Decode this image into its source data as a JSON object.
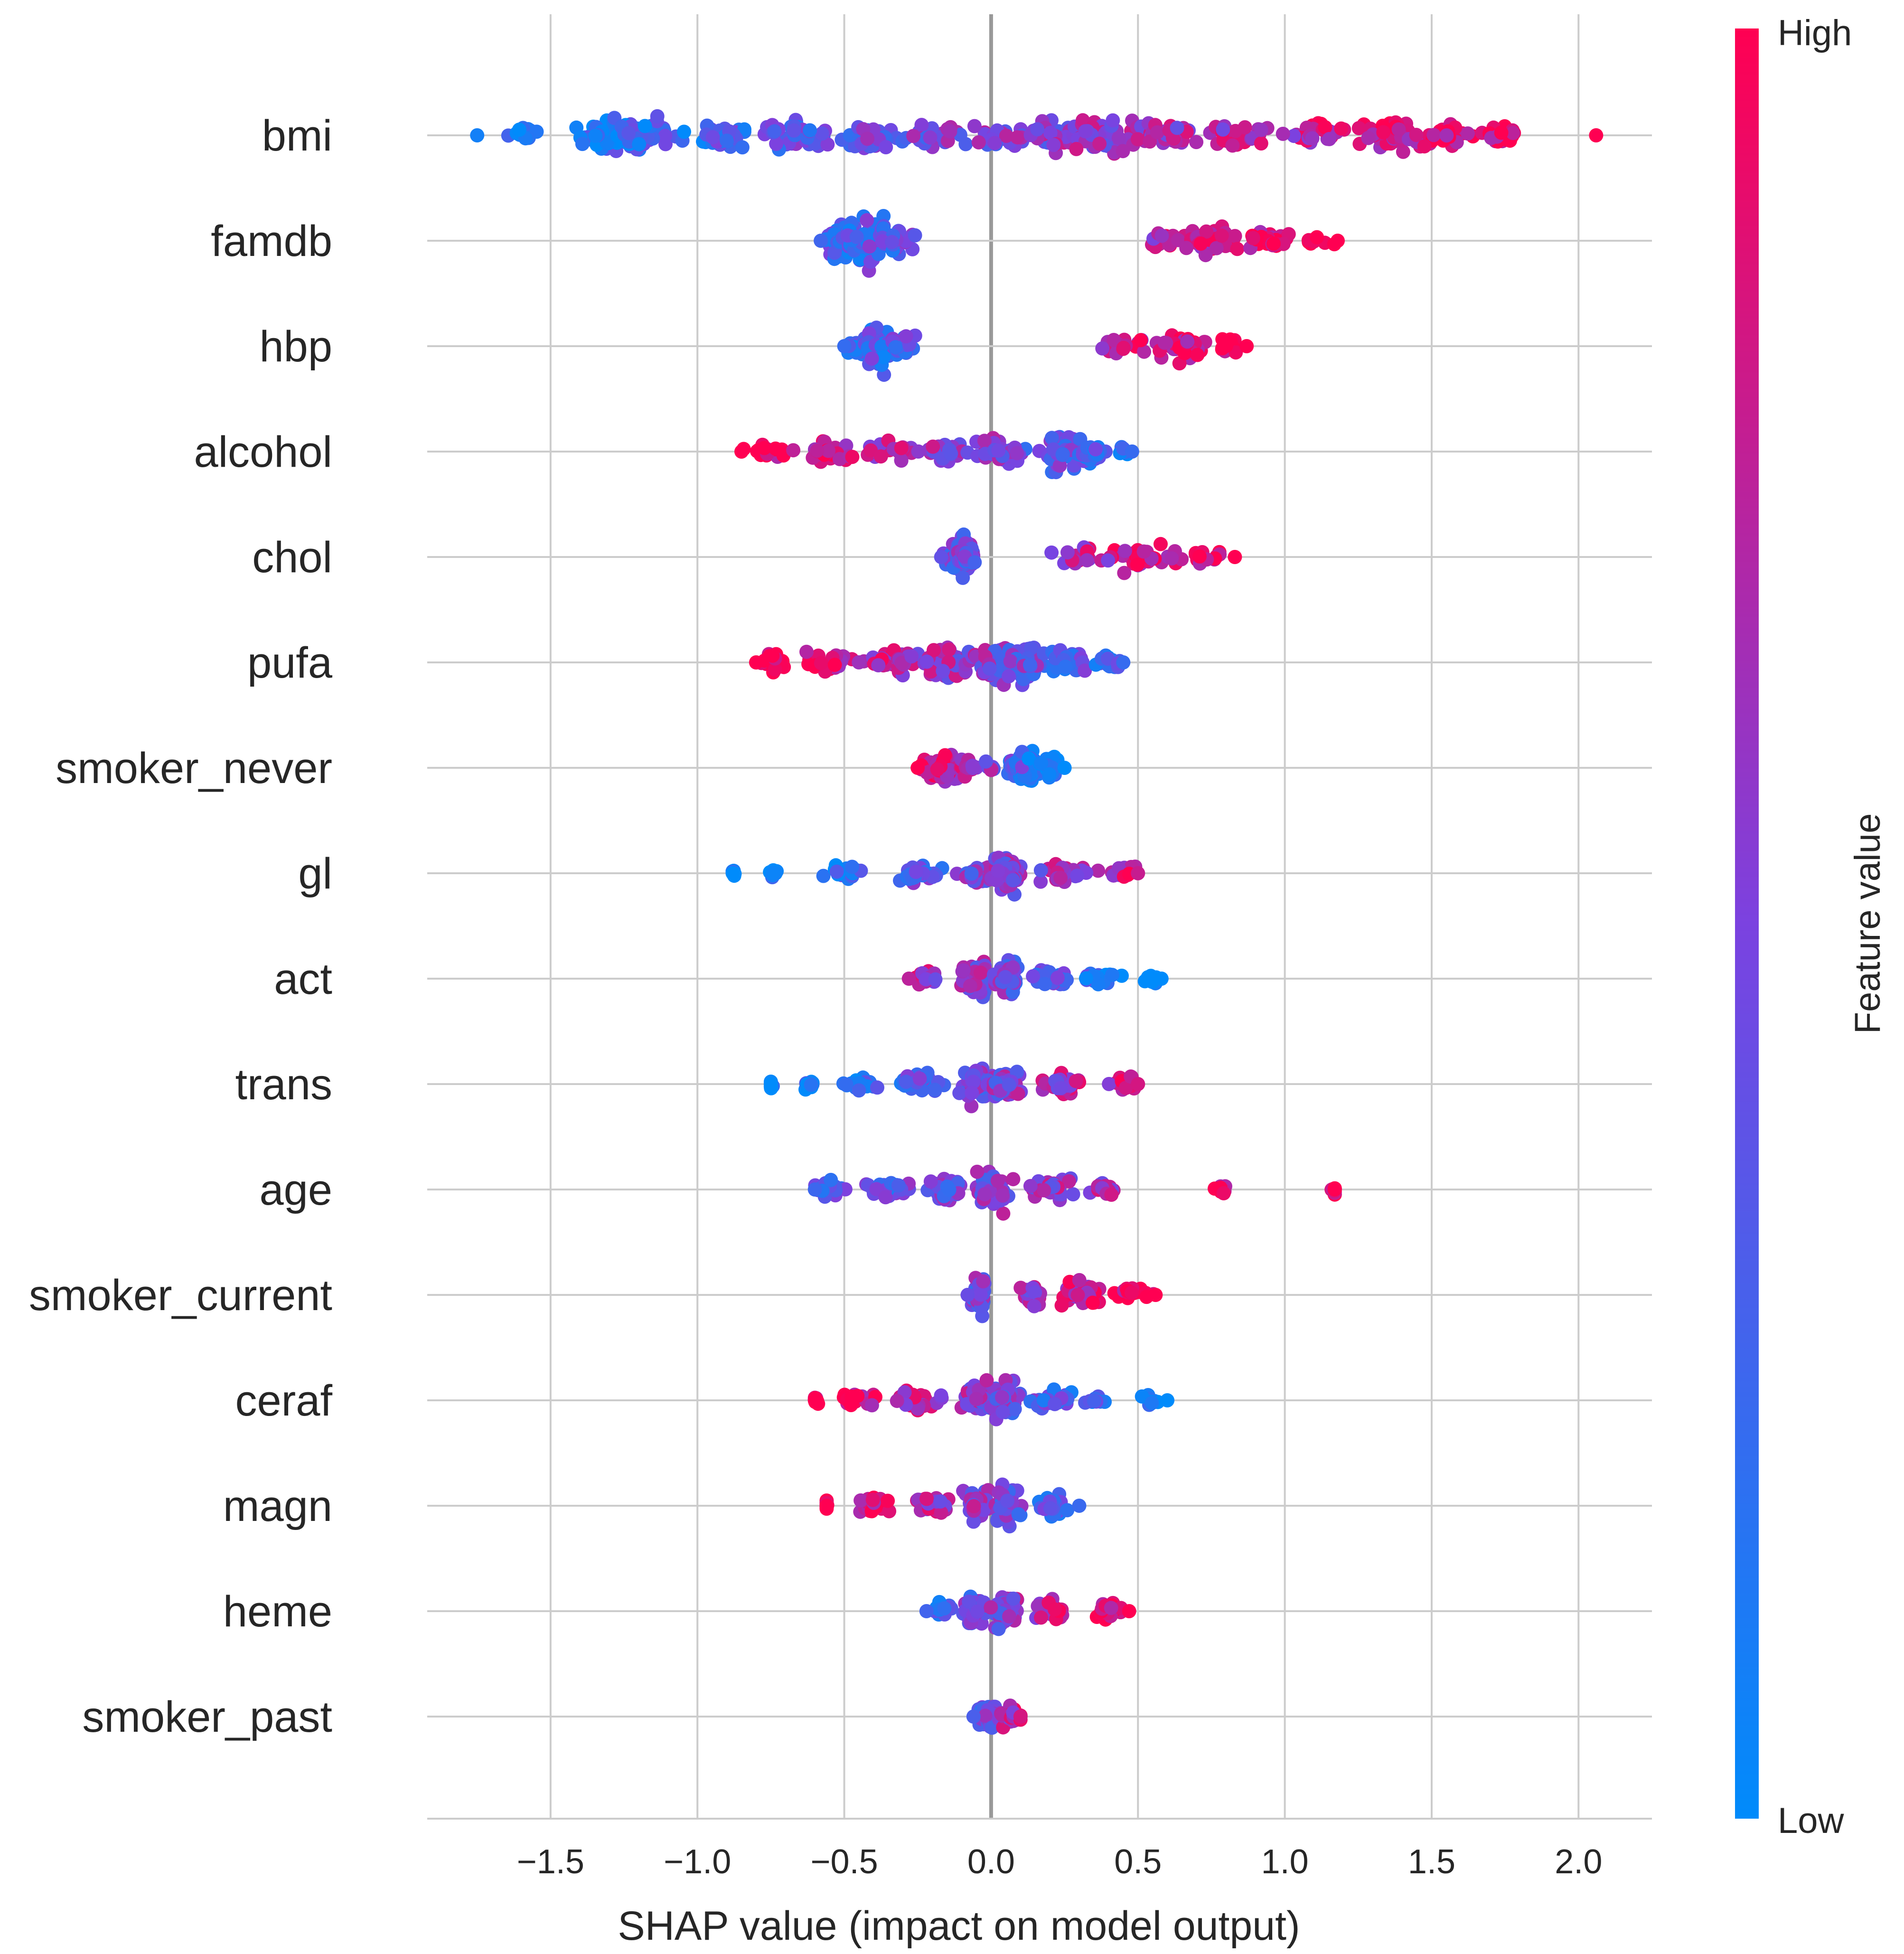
{
  "chart_data": {
    "type": "scatter",
    "subtype": "shap-beeswarm",
    "title": "",
    "xlabel": "SHAP value (impact on model output)",
    "xlim": [
      -1.92,
      2.25
    ],
    "x_ticks": [
      -1.5,
      -1.0,
      -0.5,
      0.0,
      0.5,
      1.0,
      1.5,
      2.0
    ],
    "x_tick_labels": [
      "−1.5",
      "−1.0",
      "−0.5",
      "0.0",
      "0.5",
      "1.0",
      "1.5",
      "2.0"
    ],
    "grid": true,
    "features": [
      "bmi",
      "famdb",
      "hbp",
      "alcohol",
      "chol",
      "pufa",
      "smoker_never",
      "gl",
      "act",
      "trans",
      "age",
      "smoker_current",
      "ceraf",
      "magn",
      "heme",
      "smoker_past"
    ],
    "feature_value_colorbar": {
      "label": "Feature value",
      "high_label": "High",
      "low_label": "Low",
      "low_color": "#008bfb",
      "high_color": "#ff0052",
      "mid_color": "#7b42e0"
    },
    "series": [
      {
        "feature": "bmi",
        "min": -1.75,
        "max": 2.06,
        "low_values": "negative",
        "high_values": "positive",
        "clusters": [
          [
            -1.6,
            0.05,
            2
          ],
          [
            -1.3,
            0.1,
            5
          ],
          [
            -1.2,
            0.12,
            6
          ],
          [
            -0.9,
            0.1,
            4
          ],
          [
            -0.65,
            0.12,
            5
          ],
          [
            -0.4,
            0.1,
            4
          ],
          [
            -0.2,
            0.1,
            3
          ],
          [
            0.0,
            0.1,
            3
          ],
          [
            0.2,
            0.12,
            5
          ],
          [
            0.4,
            0.12,
            6
          ],
          [
            0.6,
            0.1,
            4
          ],
          [
            0.85,
            0.1,
            3
          ],
          [
            1.1,
            0.1,
            3
          ],
          [
            1.35,
            0.1,
            5
          ],
          [
            1.55,
            0.1,
            4
          ],
          [
            1.75,
            0.05,
            2
          ]
        ]
      },
      {
        "feature": "famdb",
        "min": -0.58,
        "max": 1.18,
        "low_values": "negative",
        "high_values": "positive",
        "clusters": [
          [
            -0.5,
            0.06,
            6
          ],
          [
            -0.42,
            0.06,
            8
          ],
          [
            -0.32,
            0.05,
            4
          ],
          [
            0.6,
            0.08,
            2
          ],
          [
            0.75,
            0.09,
            4
          ],
          [
            0.95,
            0.09,
            3
          ],
          [
            1.1,
            0.05,
            1
          ]
        ]
      },
      {
        "feature": "hbp",
        "min": -0.5,
        "max": 0.87,
        "low_values": "negative",
        "high_values": "positive",
        "clusters": [
          [
            -0.45,
            0.04,
            3
          ],
          [
            -0.38,
            0.05,
            7
          ],
          [
            -0.3,
            0.04,
            3
          ],
          [
            0.45,
            0.08,
            2
          ],
          [
            0.65,
            0.09,
            4
          ],
          [
            0.82,
            0.04,
            2
          ]
        ]
      },
      {
        "feature": "alcohol",
        "min": -0.85,
        "max": 0.48,
        "low_values": "positive",
        "high_values": "negative",
        "clusters": [
          [
            -0.75,
            0.08,
            2
          ],
          [
            -0.55,
            0.1,
            3
          ],
          [
            -0.35,
            0.1,
            3
          ],
          [
            -0.15,
            0.08,
            3
          ],
          [
            0.05,
            0.08,
            4
          ],
          [
            0.25,
            0.07,
            6
          ],
          [
            0.35,
            0.05,
            3
          ],
          [
            0.45,
            0.02,
            1
          ]
        ]
      },
      {
        "feature": "chol",
        "min": -0.17,
        "max": 0.83,
        "low_values": "negative",
        "high_values": "positive",
        "clusters": [
          [
            -0.12,
            0.03,
            3
          ],
          [
            -0.1,
            0.03,
            7
          ],
          [
            -0.08,
            0.02,
            3
          ],
          [
            0.3,
            0.08,
            2
          ],
          [
            0.5,
            0.09,
            4
          ],
          [
            0.7,
            0.08,
            2
          ]
        ]
      },
      {
        "feature": "pufa",
        "min": -0.8,
        "max": 0.45,
        "low_values": "positive",
        "high_values": "negative",
        "clusters": [
          [
            -0.75,
            0.04,
            2
          ],
          [
            -0.55,
            0.08,
            3
          ],
          [
            -0.35,
            0.09,
            4
          ],
          [
            -0.15,
            0.08,
            5
          ],
          [
            0.0,
            0.08,
            6
          ],
          [
            0.12,
            0.07,
            6
          ],
          [
            0.25,
            0.07,
            4
          ],
          [
            0.4,
            0.04,
            2
          ]
        ]
      },
      {
        "feature": "smoker_never",
        "min": -0.25,
        "max": 0.25,
        "low_values": "positive",
        "high_values": "negative",
        "clusters": [
          [
            -0.2,
            0.03,
            3
          ],
          [
            -0.15,
            0.04,
            5
          ],
          [
            -0.08,
            0.03,
            3
          ],
          [
            0.0,
            0.02,
            1
          ],
          [
            0.08,
            0.03,
            3
          ],
          [
            0.13,
            0.03,
            5
          ],
          [
            0.2,
            0.03,
            3
          ]
        ]
      },
      {
        "feature": "gl",
        "min": -0.88,
        "max": 0.5,
        "low_values": "negative",
        "high_values": "positive",
        "clusters": [
          [
            -0.88,
            0.01,
            1
          ],
          [
            -0.74,
            0.02,
            1
          ],
          [
            -0.5,
            0.08,
            2
          ],
          [
            -0.25,
            0.08,
            3
          ],
          [
            -0.05,
            0.05,
            3
          ],
          [
            0.05,
            0.05,
            6
          ],
          [
            0.25,
            0.08,
            3
          ],
          [
            0.45,
            0.04,
            2
          ]
        ]
      },
      {
        "feature": "act",
        "min": -0.28,
        "max": 0.58,
        "low_values": "positive",
        "high_values": "negative",
        "clusters": [
          [
            -0.22,
            0.04,
            2
          ],
          [
            -0.05,
            0.05,
            6
          ],
          [
            0.05,
            0.05,
            6
          ],
          [
            0.2,
            0.07,
            3
          ],
          [
            0.38,
            0.08,
            2
          ],
          [
            0.55,
            0.02,
            1
          ]
        ]
      },
      {
        "feature": "trans",
        "min": -0.75,
        "max": 0.5,
        "low_values": "negative",
        "high_values": "positive",
        "clusters": [
          [
            -0.75,
            0.01,
            1
          ],
          [
            -0.62,
            0.02,
            1
          ],
          [
            -0.45,
            0.06,
            2
          ],
          [
            -0.25,
            0.07,
            3
          ],
          [
            -0.05,
            0.05,
            6
          ],
          [
            0.05,
            0.05,
            6
          ],
          [
            0.25,
            0.08,
            3
          ],
          [
            0.45,
            0.04,
            2
          ]
        ]
      },
      {
        "feature": "age",
        "min": -0.6,
        "max": 1.17,
        "low_values": "negative",
        "high_values": "positive",
        "clusters": [
          [
            -0.55,
            0.05,
            2
          ],
          [
            -0.35,
            0.07,
            3
          ],
          [
            -0.15,
            0.06,
            4
          ],
          [
            0.0,
            0.05,
            6
          ],
          [
            0.2,
            0.07,
            4
          ],
          [
            0.4,
            0.06,
            2
          ],
          [
            0.78,
            0.02,
            1
          ],
          [
            1.17,
            0.01,
            1
          ]
        ]
      },
      {
        "feature": "smoker_current",
        "min": -0.08,
        "max": 0.56,
        "low_values": "negative",
        "high_values": "positive",
        "clusters": [
          [
            -0.04,
            0.02,
            6
          ],
          [
            0.15,
            0.06,
            3
          ],
          [
            0.3,
            0.08,
            4
          ],
          [
            0.48,
            0.06,
            2
          ]
        ]
      },
      {
        "feature": "ceraf",
        "min": -0.6,
        "max": 0.6,
        "low_values": "positive",
        "high_values": "negative",
        "clusters": [
          [
            -0.6,
            0.01,
            1
          ],
          [
            -0.45,
            0.06,
            2
          ],
          [
            -0.25,
            0.07,
            3
          ],
          [
            -0.05,
            0.05,
            5
          ],
          [
            0.05,
            0.05,
            6
          ],
          [
            0.2,
            0.07,
            3
          ],
          [
            0.35,
            0.04,
            1
          ],
          [
            0.55,
            0.04,
            1
          ]
        ]
      },
      {
        "feature": "magn",
        "min": -0.56,
        "max": 0.3,
        "low_values": "positive",
        "high_values": "negative",
        "clusters": [
          [
            -0.56,
            0.01,
            1
          ],
          [
            -0.4,
            0.06,
            2
          ],
          [
            -0.2,
            0.06,
            3
          ],
          [
            -0.05,
            0.04,
            5
          ],
          [
            0.05,
            0.04,
            6
          ],
          [
            0.2,
            0.05,
            3
          ]
        ]
      },
      {
        "feature": "heme",
        "min": -0.22,
        "max": 0.47,
        "low_values": "negative",
        "high_values": "positive",
        "clusters": [
          [
            -0.18,
            0.04,
            2
          ],
          [
            -0.05,
            0.04,
            5
          ],
          [
            0.05,
            0.04,
            6
          ],
          [
            0.2,
            0.05,
            3
          ],
          [
            0.4,
            0.05,
            2
          ]
        ]
      },
      {
        "feature": "smoker_past",
        "min": -0.06,
        "max": 0.1,
        "low_values": "negative",
        "high_values": "positive",
        "clusters": [
          [
            -0.03,
            0.02,
            4
          ],
          [
            0.0,
            0.02,
            4
          ],
          [
            0.05,
            0.03,
            3
          ],
          [
            0.08,
            0.02,
            1
          ]
        ]
      }
    ]
  }
}
